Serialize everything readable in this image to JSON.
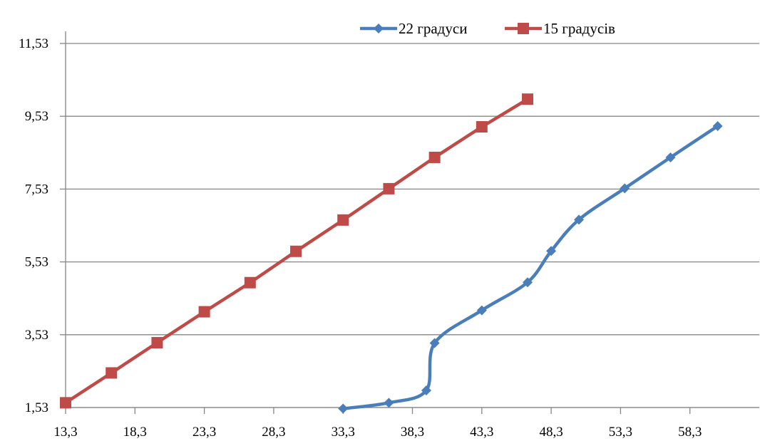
{
  "chart_data": {
    "type": "line",
    "title": "",
    "xlabel": "",
    "ylabel": "",
    "xlim": [
      13.3,
      63.3
    ],
    "ylim": [
      1.53,
      11.53
    ],
    "x_ticks": [
      "13,3",
      "18,3",
      "23,3",
      "28,3",
      "33,3",
      "38,3",
      "43,3",
      "48,3",
      "53,3",
      "58,3"
    ],
    "y_ticks": [
      "1,53",
      "3,53",
      "5,53",
      "7,53",
      "9,53",
      "11,53"
    ],
    "grid": "horizontal",
    "legend_position": "top-right",
    "series": [
      {
        "name": "22 градуси",
        "color": "#4a7ebb",
        "marker": "diamond",
        "smooth": true,
        "points": [
          [
            33.3,
            1.5
          ],
          [
            36.6,
            1.66
          ],
          [
            39.3,
            2.0
          ],
          [
            39.9,
            3.3
          ],
          [
            43.3,
            4.2
          ],
          [
            46.6,
            4.97
          ],
          [
            48.3,
            5.83
          ],
          [
            50.3,
            6.69
          ],
          [
            53.6,
            7.55
          ],
          [
            56.9,
            8.4
          ],
          [
            60.3,
            9.26
          ]
        ]
      },
      {
        "name": "15 градусів",
        "color": "#be4b48",
        "marker": "square",
        "smooth": false,
        "points": [
          [
            13.3,
            1.66
          ],
          [
            16.6,
            2.48
          ],
          [
            19.9,
            3.31
          ],
          [
            23.3,
            4.16
          ],
          [
            26.6,
            4.96
          ],
          [
            29.9,
            5.82
          ],
          [
            33.3,
            6.68
          ],
          [
            36.6,
            7.54
          ],
          [
            39.9,
            8.4
          ],
          [
            43.3,
            9.24
          ],
          [
            46.6,
            10.0
          ]
        ]
      }
    ]
  }
}
